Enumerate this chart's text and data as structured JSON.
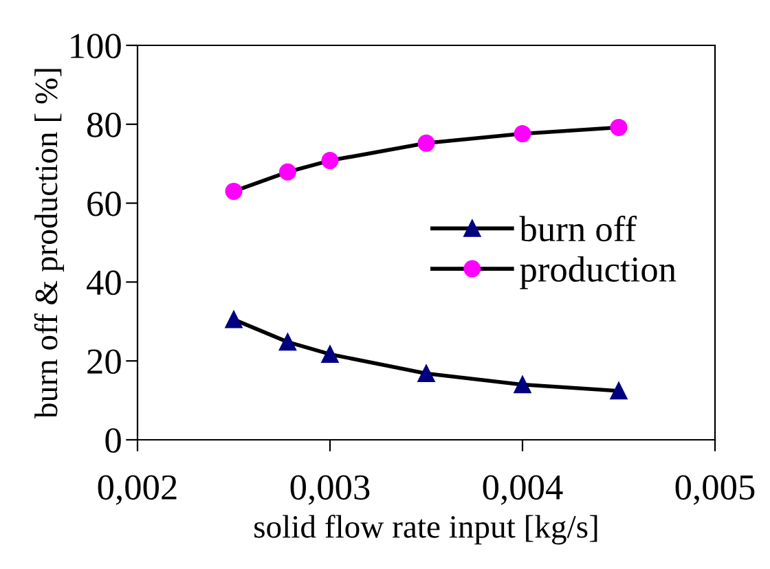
{
  "chart_data": {
    "type": "line",
    "xlabel": "solid flow rate input [kg/s]",
    "ylabel": "burn off & production [ %]",
    "x": [
      0.0025,
      0.00278,
      0.003,
      0.0035,
      0.004,
      0.0045
    ],
    "series": [
      {
        "name": "burn off",
        "color": "#000080",
        "marker": "triangle",
        "values": [
          30.5,
          24.8,
          21.7,
          16.8,
          14.0,
          12.4
        ]
      },
      {
        "name": "production",
        "color": "#ff00ff",
        "marker": "circle",
        "values": [
          63.0,
          67.9,
          70.8,
          75.2,
          77.6,
          79.2
        ]
      }
    ],
    "xlim": [
      0.002,
      0.005
    ],
    "xticks": [
      {
        "value": 0.002,
        "label": "0,002"
      },
      {
        "value": 0.003,
        "label": "0,003"
      },
      {
        "value": 0.004,
        "label": "0,004"
      },
      {
        "value": 0.005,
        "label": "0,005"
      }
    ],
    "ylim": [
      0,
      100
    ],
    "yticks": [
      0,
      20,
      40,
      60,
      80,
      100
    ],
    "grid": false,
    "legend": "right",
    "line_style": "solid"
  }
}
